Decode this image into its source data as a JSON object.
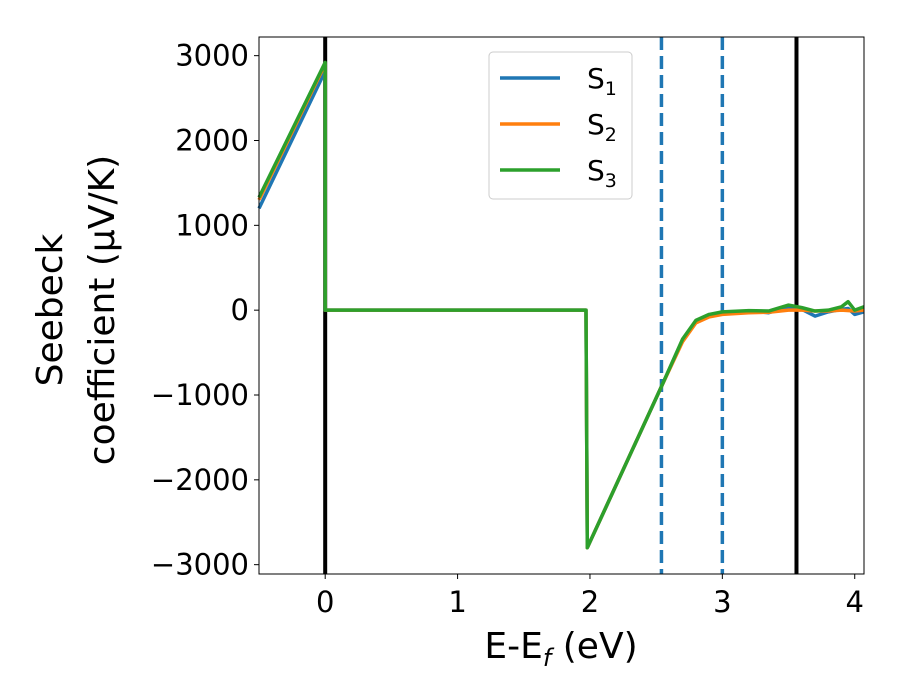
{
  "chart_data": {
    "type": "line",
    "xlabel": "E-E_f (eV)",
    "xlabel_main": "E-E",
    "xlabel_sub": "f",
    "xlabel_tail": " (eV)",
    "ylabel_line1": "Seebeck",
    "ylabel_line2": "coefficient  (μV/K)",
    "xlim": [
      -0.5,
      4.07
    ],
    "ylim": [
      -3110,
      3220
    ],
    "xticks": [
      0,
      1,
      2,
      3,
      4
    ],
    "xtick_labels": [
      "0",
      "1",
      "2",
      "3",
      "4"
    ],
    "yticks": [
      -3000,
      -2000,
      -1000,
      0,
      1000,
      2000,
      3000
    ],
    "ytick_labels": [
      "−3000",
      "−2000",
      "−1000",
      "0",
      "1000",
      "2000",
      "3000"
    ],
    "grid": false,
    "legend_position": "top-center",
    "vlines": [
      {
        "x": 0,
        "style": "solid",
        "color": "#000000"
      },
      {
        "x": 3.56,
        "style": "solid",
        "color": "#000000"
      },
      {
        "x": 2.54,
        "style": "dashed",
        "color": "#1f77b4"
      },
      {
        "x": 3.0,
        "style": "dashed",
        "color": "#1f77b4"
      }
    ],
    "series": [
      {
        "name": "S1",
        "label_main": "S",
        "label_sub": "1",
        "color": "#1f77b4",
        "points": [
          [
            -0.5,
            1200
          ],
          [
            0,
            2820
          ],
          [
            0,
            0
          ],
          [
            1.97,
            0
          ],
          [
            1.98,
            -2800
          ],
          [
            2.54,
            -900
          ],
          [
            2.7,
            -350
          ],
          [
            2.8,
            -130
          ],
          [
            2.9,
            -60
          ],
          [
            3.0,
            -30
          ],
          [
            3.2,
            -10
          ],
          [
            3.35,
            -30
          ],
          [
            3.5,
            40
          ],
          [
            3.6,
            10
          ],
          [
            3.7,
            -70
          ],
          [
            3.8,
            -20
          ],
          [
            3.9,
            10
          ],
          [
            3.95,
            20
          ],
          [
            4.0,
            -50
          ],
          [
            4.07,
            -20
          ]
        ]
      },
      {
        "name": "S2",
        "label_main": "S",
        "label_sub": "2",
        "color": "#ff7f0e",
        "points": [
          [
            -0.5,
            1300
          ],
          [
            0,
            2900
          ],
          [
            0,
            0
          ],
          [
            1.97,
            0
          ],
          [
            1.98,
            -2800
          ],
          [
            2.54,
            -900
          ],
          [
            2.7,
            -370
          ],
          [
            2.8,
            -150
          ],
          [
            2.9,
            -80
          ],
          [
            3.0,
            -50
          ],
          [
            3.2,
            -30
          ],
          [
            3.35,
            -25
          ],
          [
            3.5,
            0
          ],
          [
            3.6,
            0
          ],
          [
            3.7,
            -10
          ],
          [
            3.8,
            -10
          ],
          [
            3.9,
            0
          ],
          [
            4.0,
            -10
          ],
          [
            4.07,
            0
          ]
        ]
      },
      {
        "name": "S3",
        "label_main": "S",
        "label_sub": "3",
        "color": "#2ca02c",
        "points": [
          [
            -0.5,
            1330
          ],
          [
            0,
            2920
          ],
          [
            0,
            0
          ],
          [
            1.97,
            0
          ],
          [
            1.98,
            -2800
          ],
          [
            2.54,
            -900
          ],
          [
            2.7,
            -340
          ],
          [
            2.8,
            -120
          ],
          [
            2.9,
            -50
          ],
          [
            3.0,
            -20
          ],
          [
            3.2,
            -5
          ],
          [
            3.35,
            -10
          ],
          [
            3.5,
            60
          ],
          [
            3.6,
            30
          ],
          [
            3.7,
            -10
          ],
          [
            3.8,
            0
          ],
          [
            3.9,
            40
          ],
          [
            3.95,
            100
          ],
          [
            4.0,
            0
          ],
          [
            4.07,
            40
          ]
        ]
      }
    ]
  }
}
